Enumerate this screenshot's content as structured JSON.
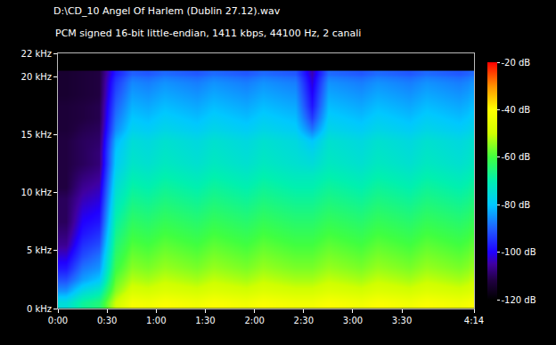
{
  "chart_data": {
    "type": "heatmap",
    "title": "D:\\CD_10 Angel Of Harlem (Dublin 27.12).wav",
    "subtitle": "PCM signed 16-bit little-endian, 1411 kbps, 44100 Hz, 2 canali",
    "x": [
      0,
      10,
      20,
      30,
      40,
      50,
      60,
      70,
      80,
      90,
      100,
      110,
      120,
      130,
      140,
      150,
      160,
      170,
      180,
      190,
      200,
      210,
      220,
      230,
      240,
      250,
      254
    ],
    "y": [
      0,
      1,
      2,
      3,
      4,
      5,
      6,
      7,
      8,
      9,
      10,
      11,
      12,
      13,
      14,
      15,
      16,
      17,
      18,
      19,
      20,
      20.5
    ],
    "cells": [
      [
        -75,
        -85,
        -92,
        -98,
        -102,
        -106,
        -108,
        -110,
        -110,
        -110,
        -112,
        -112,
        -112,
        -112,
        -112,
        -113,
        -113,
        -113,
        -114,
        -114,
        -114
      ],
      [
        -68,
        -76,
        -84,
        -88,
        -92,
        -95,
        -98,
        -100,
        -102,
        -104,
        -106,
        -108,
        -110,
        -110,
        -110,
        -111,
        -112,
        -112,
        -113,
        -113,
        -113
      ],
      [
        -65,
        -72,
        -80,
        -85,
        -88,
        -92,
        -95,
        -98,
        -100,
        -102,
        -104,
        -106,
        -108,
        -108,
        -109,
        -110,
        -111,
        -111,
        -112,
        -112,
        -112
      ],
      [
        -50,
        -55,
        -58,
        -61,
        -63,
        -65,
        -67,
        -69,
        -71,
        -73,
        -75,
        -77,
        -79,
        -80,
        -82,
        -86,
        -88,
        -90,
        -92,
        -94,
        -97
      ],
      [
        -42,
        -48,
        -52,
        -55,
        -57,
        -59,
        -61,
        -63,
        -65,
        -67,
        -69,
        -71,
        -73,
        -74,
        -75,
        -78,
        -80,
        -82,
        -84,
        -86,
        -90
      ],
      [
        -43,
        -49,
        -53,
        -56,
        -58,
        -60,
        -62,
        -64,
        -66,
        -68,
        -70,
        -72,
        -74,
        -75,
        -76,
        -79,
        -81,
        -83,
        -85,
        -87,
        -91
      ],
      [
        -41,
        -47,
        -51,
        -54,
        -56,
        -58,
        -60,
        -62,
        -64,
        -66,
        -68,
        -70,
        -72,
        -73,
        -74,
        -77,
        -79,
        -81,
        -83,
        -85,
        -89
      ],
      [
        -42,
        -48,
        -52,
        -55,
        -57,
        -59,
        -61,
        -63,
        -65,
        -67,
        -69,
        -71,
        -73,
        -74,
        -75,
        -78,
        -80,
        -82,
        -84,
        -86,
        -90
      ],
      [
        -43,
        -49,
        -53,
        -56,
        -58,
        -60,
        -62,
        -64,
        -66,
        -68,
        -70,
        -72,
        -74,
        -75,
        -76,
        -79,
        -81,
        -83,
        -85,
        -87,
        -91
      ],
      [
        -41,
        -47,
        -51,
        -54,
        -56,
        -58,
        -60,
        -62,
        -64,
        -66,
        -68,
        -70,
        -72,
        -73,
        -74,
        -77,
        -79,
        -81,
        -83,
        -85,
        -89
      ],
      [
        -42,
        -48,
        -52,
        -55,
        -57,
        -59,
        -61,
        -63,
        -65,
        -67,
        -69,
        -71,
        -73,
        -74,
        -75,
        -78,
        -80,
        -82,
        -84,
        -86,
        -90
      ],
      [
        -43,
        -49,
        -53,
        -56,
        -58,
        -60,
        -62,
        -64,
        -66,
        -68,
        -70,
        -72,
        -74,
        -75,
        -76,
        -79,
        -81,
        -83,
        -85,
        -87,
        -91
      ],
      [
        -41,
        -47,
        -51,
        -54,
        -56,
        -58,
        -60,
        -62,
        -64,
        -66,
        -68,
        -70,
        -72,
        -73,
        -74,
        -77,
        -79,
        -81,
        -83,
        -85,
        -89
      ],
      [
        -42,
        -48,
        -52,
        -55,
        -57,
        -59,
        -61,
        -63,
        -65,
        -67,
        -69,
        -71,
        -73,
        -74,
        -75,
        -78,
        -80,
        -82,
        -84,
        -86,
        -90
      ],
      [
        -43,
        -49,
        -53,
        -56,
        -58,
        -60,
        -62,
        -64,
        -66,
        -68,
        -70,
        -72,
        -74,
        -75,
        -76,
        -79,
        -81,
        -83,
        -85,
        -87,
        -91
      ],
      [
        -43,
        -49,
        -53,
        -56,
        -58,
        -60,
        -62,
        -64,
        -66,
        -68,
        -70,
        -72,
        -75,
        -77,
        -80,
        -88,
        -94,
        -98,
        -100,
        -102,
        -104
      ],
      [
        -41,
        -47,
        -51,
        -54,
        -56,
        -58,
        -60,
        -62,
        -64,
        -66,
        -68,
        -70,
        -72,
        -73,
        -74,
        -77,
        -79,
        -81,
        -83,
        -85,
        -89
      ],
      [
        -42,
        -48,
        -52,
        -55,
        -57,
        -59,
        -61,
        -63,
        -65,
        -67,
        -69,
        -71,
        -73,
        -74,
        -75,
        -78,
        -80,
        -82,
        -84,
        -86,
        -90
      ],
      [
        -43,
        -49,
        -53,
        -56,
        -58,
        -60,
        -62,
        -64,
        -66,
        -68,
        -70,
        -72,
        -74,
        -75,
        -76,
        -79,
        -81,
        -83,
        -85,
        -87,
        -91
      ],
      [
        -41,
        -47,
        -51,
        -54,
        -56,
        -58,
        -60,
        -62,
        -64,
        -66,
        -68,
        -70,
        -72,
        -73,
        -74,
        -77,
        -79,
        -81,
        -83,
        -85,
        -89
      ],
      [
        -42,
        -48,
        -52,
        -55,
        -57,
        -59,
        -61,
        -63,
        -65,
        -67,
        -69,
        -71,
        -73,
        -74,
        -75,
        -78,
        -80,
        -82,
        -84,
        -86,
        -90
      ],
      [
        -43,
        -49,
        -53,
        -56,
        -58,
        -60,
        -62,
        -64,
        -66,
        -68,
        -70,
        -72,
        -74,
        -75,
        -76,
        -79,
        -81,
        -83,
        -85,
        -87,
        -91
      ],
      [
        -41,
        -47,
        -51,
        -54,
        -56,
        -58,
        -60,
        -62,
        -64,
        -66,
        -68,
        -70,
        -72,
        -73,
        -74,
        -77,
        -79,
        -81,
        -83,
        -85,
        -89
      ],
      [
        -42,
        -48,
        -52,
        -55,
        -57,
        -59,
        -61,
        -63,
        -65,
        -67,
        -69,
        -71,
        -73,
        -74,
        -75,
        -78,
        -80,
        -82,
        -84,
        -86,
        -90
      ],
      [
        -43,
        -49,
        -53,
        -56,
        -58,
        -60,
        -62,
        -64,
        -66,
        -68,
        -70,
        -72,
        -74,
        -75,
        -76,
        -79,
        -81,
        -83,
        -85,
        -87,
        -91
      ],
      [
        -41,
        -47,
        -51,
        -54,
        -56,
        -58,
        -60,
        -62,
        -64,
        -66,
        -68,
        -70,
        -72,
        -73,
        -74,
        -77,
        -79,
        -81,
        -83,
        -85,
        -89
      ]
    ],
    "xlim": [
      0,
      254
    ],
    "ylim": [
      0,
      22
    ],
    "xticks": [
      {
        "value": 0,
        "label": "0:00"
      },
      {
        "value": 30,
        "label": "0:30"
      },
      {
        "value": 60,
        "label": "1:00"
      },
      {
        "value": 90,
        "label": "1:30"
      },
      {
        "value": 120,
        "label": "2:00"
      },
      {
        "value": 150,
        "label": "2:30"
      },
      {
        "value": 180,
        "label": "3:00"
      },
      {
        "value": 210,
        "label": "3:30"
      },
      {
        "value": 254,
        "label": "4:14"
      }
    ],
    "yticks": [
      {
        "value": 0,
        "label": "0 kHz"
      },
      {
        "value": 5,
        "label": "5 kHz"
      },
      {
        "value": 10,
        "label": "10 kHz"
      },
      {
        "value": 15,
        "label": "15 kHz"
      },
      {
        "value": 20,
        "label": "20 kHz"
      },
      {
        "value": 22,
        "label": "22 kHz"
      }
    ],
    "colorbar_range": [
      -120,
      -20
    ],
    "colorbar_ticks": [
      {
        "value": -20,
        "label": "-20 dB"
      },
      {
        "value": -40,
        "label": "-40 dB"
      },
      {
        "value": -60,
        "label": "-60 dB"
      },
      {
        "value": -80,
        "label": "-80 dB"
      },
      {
        "value": -100,
        "label": "-100 dB"
      },
      {
        "value": -120,
        "label": "-120 dB"
      }
    ]
  }
}
